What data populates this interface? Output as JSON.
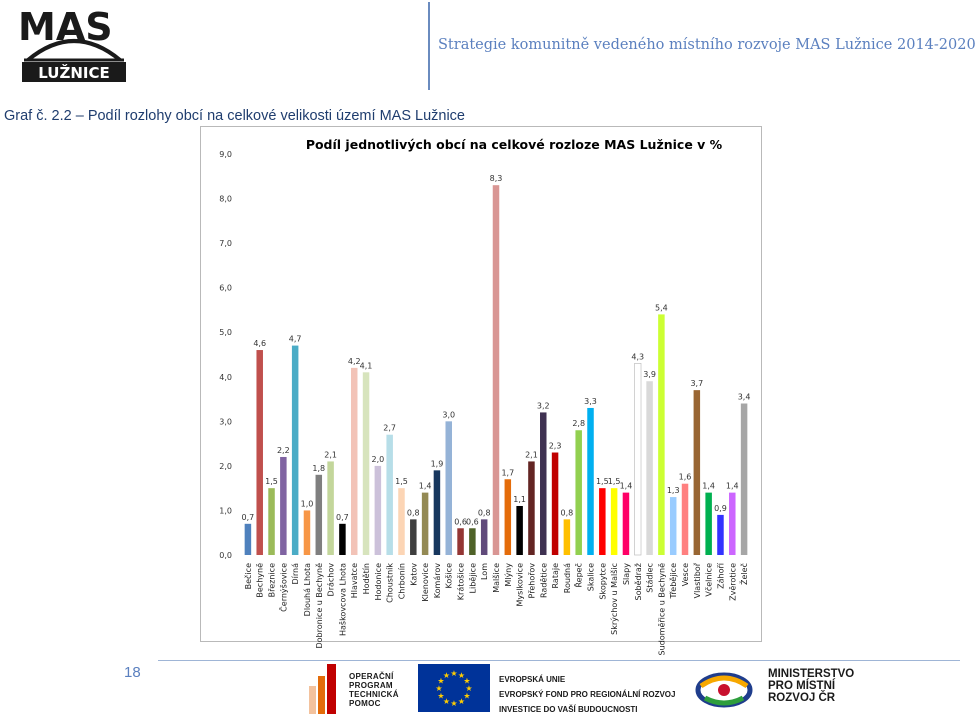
{
  "header": {
    "logo_text_top": "MAS",
    "logo_text_bottom": "LUŽNICE",
    "title": "Strategie komunitně vedeného místního rozvoje MAS Lužnice 2014-2020"
  },
  "figure_caption": "Graf č. 2.2 – Podíl rozlohy obcí na celkové velikosti území MAS Lužnice",
  "chart_data": {
    "type": "bar",
    "title": "Podíl jednotlivých obcí na celkové rozloze MAS Lužnice v %",
    "xlabel": "",
    "ylabel": "",
    "ylim": [
      0,
      9
    ],
    "yticks": [
      "0,0",
      "1,0",
      "2,0",
      "3,0",
      "4,0",
      "5,0",
      "6,0",
      "7,0",
      "8,0",
      "9,0"
    ],
    "grid": false,
    "legend": "none",
    "categories": [
      "Bečice",
      "Bechyně",
      "Březnice",
      "Černýšovice",
      "Dírná",
      "Dlouhá Lhota",
      "Dobronice u Bechyně",
      "Dráchov",
      "Haškovcova Lhota",
      "Hlavatce",
      "Hodětín",
      "Hodonice",
      "Choustník",
      "Chrbonín",
      "Katov",
      "Klenovice",
      "Komárov",
      "Košice",
      "Krátošice",
      "Libějice",
      "Lom",
      "Malšice",
      "Mlýny",
      "Myslkovice",
      "Přehořov",
      "Radětice",
      "Rataje",
      "Roudná",
      "Řepeč",
      "Skalice",
      "Skopytce",
      "Skrýchov u Malšic",
      "Slapy",
      "Sobědraž",
      "Stádlec",
      "Sudoměřice u Bechyně",
      "Třebějice",
      "Vesce",
      "Vlastiboř",
      "Včelnice",
      "Záhoří",
      "Zvěrotice",
      "Želeč"
    ],
    "values": [
      0.7,
      4.6,
      1.5,
      2.2,
      4.7,
      1.0,
      1.8,
      2.1,
      0.7,
      4.2,
      4.1,
      2.0,
      2.7,
      1.5,
      0.8,
      1.4,
      1.9,
      3.0,
      0.6,
      0.6,
      0.8,
      8.3,
      1.7,
      1.1,
      2.1,
      3.2,
      2.3,
      0.8,
      2.8,
      3.3,
      1.5,
      1.5,
      1.4,
      4.3,
      3.9,
      5.4,
      1.3,
      1.6,
      3.7,
      1.4,
      0.9,
      1.4,
      3.4
    ],
    "data_labels": [
      "0,7",
      "4,6",
      "1,5",
      "2,2",
      "4,7",
      "1,0",
      "1,8",
      "2,1",
      "0,7",
      "4,2",
      "4,1",
      "2,0",
      "2,7",
      "1,5",
      "0,8",
      "1,4",
      "1,9",
      "3,0",
      "0,6",
      "0,6",
      "0,8",
      "8,3",
      "1,7",
      "1,1",
      "2,1",
      "3,2",
      "2,3",
      "0,8",
      "2,8",
      "3,3",
      "1,5",
      "1,5",
      "1,4",
      "4,3",
      "3,9",
      "5,4",
      "1,3",
      "1,6",
      "3,7",
      "1,4",
      "0,9",
      "1,4",
      "3,4"
    ],
    "colors": [
      "#4f81bd",
      "#c0504d",
      "#9bbb59",
      "#8064a2",
      "#4bacc6",
      "#f79646",
      "#7f7f7f",
      "#c3d69b",
      "#000000",
      "#f2c3b7",
      "#d7e4bd",
      "#ccc1da",
      "#b7dee8",
      "#fcd5b5",
      "#3f3f3f",
      "#948a54",
      "#17375e",
      "#95b3d7",
      "#943634",
      "#4f6228",
      "#604a7b",
      "#d99694",
      "#e46c0a",
      "#000000",
      "#632523",
      "#3f3151",
      "#c00000",
      "#ffc000",
      "#92d050",
      "#00b0f0",
      "#ff0000",
      "#ffff00",
      "#ff0066",
      "#ffffff",
      "#d9d9d9",
      "#ccff33",
      "#99ccff",
      "#ff8080",
      "#996633",
      "#00b050",
      "#3333ff",
      "#cc66ff",
      "#a6a6a6"
    ]
  },
  "footer": {
    "page_number": "18",
    "op_lines": [
      "OPERAČNÍ",
      "PROGRAM",
      "TECHNICKÁ",
      "POMOC"
    ],
    "eu_lines": [
      "EVROPSKÁ UNIE",
      "EVROPSKÝ FOND PRO REGIONÁLNÍ ROZVOJ",
      "INVESTICE DO VAŠÍ BUDOUCNOSTI"
    ],
    "mmr_lines": [
      "MINISTERSTVO",
      "PRO MÍSTNÍ",
      "ROZVOJ ČR"
    ]
  }
}
